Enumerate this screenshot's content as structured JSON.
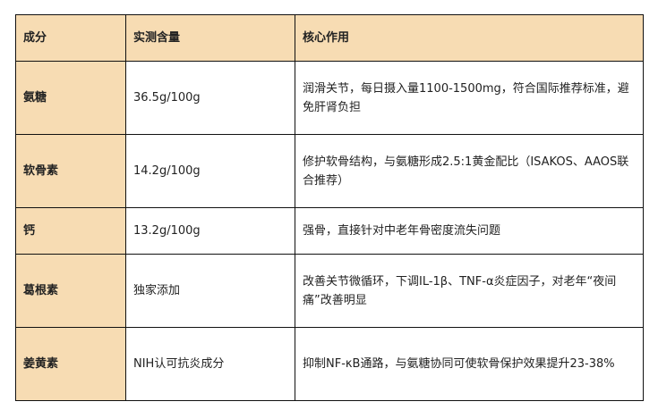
{
  "headers": [
    "成分",
    "实测含量",
    "核心作用"
  ],
  "rows": [
    {
      "name": "氨糖",
      "amount": "36.5g/100g",
      "effect": "润滑关节，每日摄入量1100-1500mg，符合国际推荐标准，避免肝肾负担"
    },
    {
      "name": "软骨素",
      "amount": "14.2g/100g",
      "effect": "修护软骨结构，与氨糖形成2.5:1黄金配比（ISAKOS、AAOS联合推荐）"
    },
    {
      "name": "钙",
      "amount": "13.2g/100g",
      "effect": "强骨，直接针对中老年骨密度流失问题"
    },
    {
      "name": "葛根素",
      "amount": "独家添加",
      "effect": "改善关节微循环，下调IL-1β、TNF-α炎症因子，对老年“夜间痛”改善明显"
    },
    {
      "name": "姜黄素",
      "amount": "NIH认可抗炎成分",
      "effect": "抑制NF-κB通路，与氨糖协同可使软骨保护效果提升23-38%"
    }
  ],
  "colors": {
    "header_bg": "#f7dcb3",
    "border": "#111111"
  }
}
